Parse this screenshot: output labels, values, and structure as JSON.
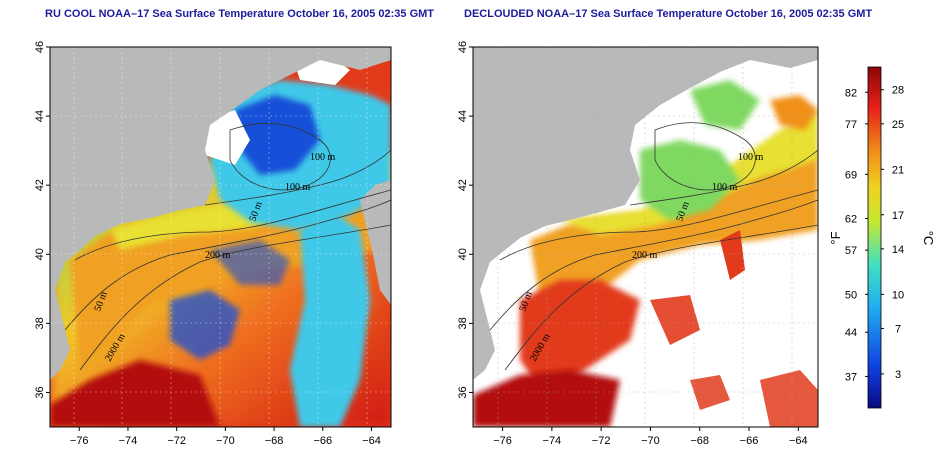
{
  "panels": [
    {
      "title": "RU COOL NOAA–17 Sea Surface Temperature October 16, 2005 02:35 GMT"
    },
    {
      "title": "DECLOUDED NOAA–17 Sea Surface Temperature October 16, 2005 02:35 GMT"
    }
  ],
  "axes": {
    "x_ticks": [
      {
        "value": -76,
        "label": "−76"
      },
      {
        "value": -74,
        "label": "−74"
      },
      {
        "value": -72,
        "label": "−72"
      },
      {
        "value": -70,
        "label": "−70"
      },
      {
        "value": -68,
        "label": "−68"
      },
      {
        "value": -66,
        "label": "−66"
      },
      {
        "value": -64,
        "label": "−64"
      }
    ],
    "y_ticks": [
      {
        "value": 36,
        "label": "36"
      },
      {
        "value": 38,
        "label": "38"
      },
      {
        "value": 40,
        "label": "40"
      },
      {
        "value": 42,
        "label": "42"
      },
      {
        "value": 44,
        "label": "44"
      },
      {
        "value": 46,
        "label": "46"
      }
    ],
    "xlim": [
      -77.2,
      -63.2
    ],
    "ylim": [
      35,
      46
    ]
  },
  "contour_labels": {
    "left": [
      "100 m",
      "100 m",
      "50 m",
      "200 m",
      "50 m",
      "2000 m"
    ],
    "right": [
      "100 m",
      "100 m",
      "50 m",
      "200 m",
      "50 m",
      "2000 m"
    ]
  },
  "colorbar": {
    "fahrenheit_ticks": [
      {
        "value": 82,
        "label": "82"
      },
      {
        "value": 77,
        "label": "77"
      },
      {
        "value": 69,
        "label": "69"
      },
      {
        "value": 62,
        "label": "62"
      },
      {
        "value": 57,
        "label": "57"
      },
      {
        "value": 50,
        "label": "50"
      },
      {
        "value": 44,
        "label": "44"
      },
      {
        "value": 37,
        "label": "37"
      }
    ],
    "celsius_ticks": [
      {
        "value": 28,
        "label": "28"
      },
      {
        "value": 25,
        "label": "25"
      },
      {
        "value": 21,
        "label": "21"
      },
      {
        "value": 17,
        "label": "17"
      },
      {
        "value": 14,
        "label": "14"
      },
      {
        "value": 10,
        "label": "10"
      },
      {
        "value": 7,
        "label": "7"
      },
      {
        "value": 3,
        "label": "3"
      }
    ],
    "celsius_range": [
      0,
      30
    ],
    "left_unit": "°F",
    "right_unit": "°C"
  },
  "colors": {
    "land": "#b9b9b9",
    "cloud": "#ffffff",
    "warm": "#e8261a",
    "hot": "#b30f10",
    "orange": "#f0a020",
    "yellow": "#e8e030",
    "green": "#7fd860",
    "cyan": "#40c8e8",
    "blue": "#1850d8",
    "navy": "#0a0a80"
  }
}
